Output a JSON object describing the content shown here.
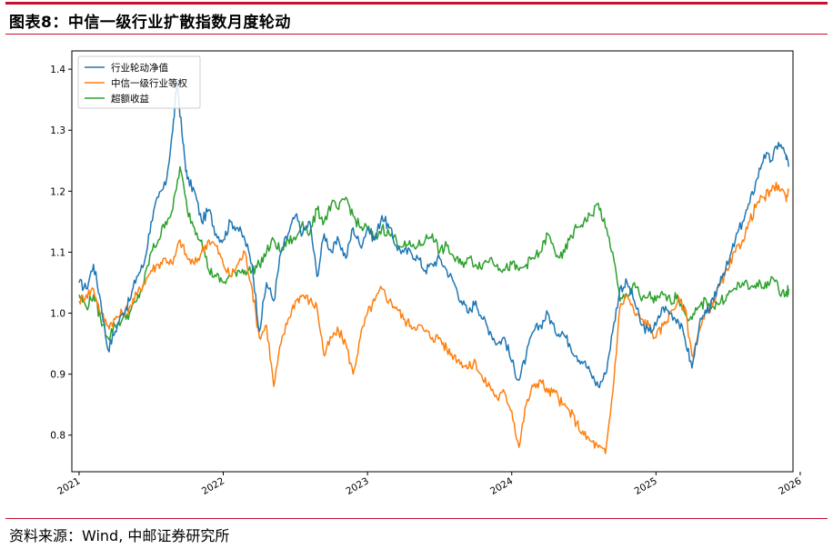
{
  "header": {
    "title": "图表8：中信一级行业扩散指数月度轮动"
  },
  "footer": {
    "source": "资料来源：Wind, 中邮证券研究所"
  },
  "chart_data": {
    "type": "line",
    "title": "图表8：中信一级行业扩散指数月度轮动",
    "xlabel": "",
    "ylabel": "",
    "ylim": [
      0.74,
      1.43
    ],
    "xlim": [
      2020.95,
      2025.95
    ],
    "yticks": [
      0.8,
      0.9,
      1.0,
      1.1,
      1.2,
      1.3,
      1.4
    ],
    "ytick_labels": [
      "0.8",
      "0.9",
      "1.0",
      "1.1",
      "1.2",
      "1.3",
      "1.4"
    ],
    "xticks": [
      2021,
      2022,
      2023,
      2024,
      2025,
      2026
    ],
    "xtick_labels": [
      "2021",
      "2022",
      "2023",
      "2024",
      "2025",
      "2026"
    ],
    "grid": false,
    "legend_position": "top-left",
    "series": [
      {
        "name": "行业轮动净值",
        "color": "#1f77b4",
        "x": [
          2021.0,
          2021.05,
          2021.1,
          2021.15,
          2021.2,
          2021.25,
          2021.3,
          2021.35,
          2021.4,
          2021.45,
          2021.5,
          2021.55,
          2021.6,
          2021.65,
          2021.68,
          2021.72,
          2021.75,
          2021.8,
          2021.85,
          2021.9,
          2021.95,
          2022.0,
          2022.05,
          2022.1,
          2022.15,
          2022.2,
          2022.25,
          2022.3,
          2022.35,
          2022.4,
          2022.45,
          2022.5,
          2022.55,
          2022.6,
          2022.65,
          2022.7,
          2022.75,
          2022.8,
          2022.85,
          2022.9,
          2022.95,
          2023.0,
          2023.05,
          2023.1,
          2023.15,
          2023.2,
          2023.25,
          2023.3,
          2023.35,
          2023.4,
          2023.45,
          2023.5,
          2023.55,
          2023.6,
          2023.65,
          2023.7,
          2023.75,
          2023.8,
          2023.85,
          2023.9,
          2023.95,
          2024.0,
          2024.05,
          2024.1,
          2024.15,
          2024.2,
          2024.25,
          2024.3,
          2024.35,
          2024.4,
          2024.45,
          2024.5,
          2024.55,
          2024.6,
          2024.65,
          2024.7,
          2024.75,
          2024.8,
          2024.85,
          2024.9,
          2024.95,
          2025.0,
          2025.05,
          2025.1,
          2025.15,
          2025.2,
          2025.25,
          2025.3,
          2025.35,
          2025.4,
          2025.45,
          2025.5,
          2025.55,
          2025.6,
          2025.65,
          2025.7,
          2025.75,
          2025.8,
          2025.85,
          2025.9,
          2025.92
        ],
        "values": [
          1.05,
          1.04,
          1.08,
          1.02,
          0.94,
          0.97,
          1.0,
          1.02,
          1.06,
          1.08,
          1.15,
          1.19,
          1.21,
          1.3,
          1.38,
          1.28,
          1.22,
          1.2,
          1.15,
          1.17,
          1.13,
          1.12,
          1.15,
          1.14,
          1.12,
          1.08,
          0.97,
          1.05,
          1.02,
          1.1,
          1.13,
          1.16,
          1.13,
          1.15,
          1.06,
          1.13,
          1.1,
          1.12,
          1.09,
          1.14,
          1.11,
          1.14,
          1.12,
          1.16,
          1.14,
          1.11,
          1.1,
          1.1,
          1.09,
          1.07,
          1.08,
          1.09,
          1.07,
          1.05,
          1.02,
          1.0,
          1.02,
          0.99,
          0.97,
          0.95,
          0.96,
          0.92,
          0.89,
          0.93,
          0.97,
          0.98,
          1.0,
          0.97,
          0.97,
          0.95,
          0.93,
          0.92,
          0.9,
          0.88,
          0.9,
          0.97,
          1.04,
          1.05,
          1.02,
          0.98,
          0.97,
          0.98,
          1.01,
          1.0,
          0.99,
          0.96,
          0.91,
          0.98,
          1.0,
          1.02,
          1.06,
          1.08,
          1.12,
          1.15,
          1.18,
          1.22,
          1.26,
          1.25,
          1.28,
          1.26,
          1.24
        ]
      },
      {
        "name": "中信一级行业等权",
        "color": "#ff7f0e",
        "x": [
          2021.0,
          2021.05,
          2021.1,
          2021.15,
          2021.2,
          2021.25,
          2021.3,
          2021.35,
          2021.4,
          2021.45,
          2021.5,
          2021.55,
          2021.6,
          2021.65,
          2021.7,
          2021.75,
          2021.8,
          2021.85,
          2021.9,
          2021.95,
          2022.0,
          2022.05,
          2022.1,
          2022.15,
          2022.2,
          2022.25,
          2022.3,
          2022.35,
          2022.4,
          2022.45,
          2022.5,
          2022.55,
          2022.6,
          2022.65,
          2022.7,
          2022.75,
          2022.8,
          2022.85,
          2022.9,
          2022.95,
          2023.0,
          2023.05,
          2023.1,
          2023.15,
          2023.2,
          2023.25,
          2023.3,
          2023.35,
          2023.4,
          2023.45,
          2023.5,
          2023.55,
          2023.6,
          2023.65,
          2023.7,
          2023.75,
          2023.8,
          2023.85,
          2023.9,
          2023.95,
          2024.0,
          2024.05,
          2024.1,
          2024.15,
          2024.2,
          2024.25,
          2024.3,
          2024.35,
          2024.4,
          2024.45,
          2024.5,
          2024.55,
          2024.6,
          2024.65,
          2024.7,
          2024.75,
          2024.8,
          2024.85,
          2024.9,
          2024.95,
          2025.0,
          2025.05,
          2025.1,
          2025.15,
          2025.2,
          2025.25,
          2025.3,
          2025.35,
          2025.4,
          2025.45,
          2025.5,
          2025.55,
          2025.6,
          2025.65,
          2025.7,
          2025.75,
          2025.8,
          2025.85,
          2025.9,
          2025.92
        ],
        "values": [
          1.02,
          1.03,
          1.04,
          1.0,
          0.98,
          0.99,
          1.0,
          1.01,
          1.03,
          1.05,
          1.07,
          1.08,
          1.09,
          1.08,
          1.12,
          1.09,
          1.08,
          1.1,
          1.12,
          1.11,
          1.08,
          1.06,
          1.08,
          1.1,
          1.04,
          0.96,
          0.98,
          0.88,
          0.95,
          0.99,
          1.02,
          1.03,
          1.02,
          1.01,
          0.93,
          0.96,
          0.97,
          0.95,
          0.9,
          0.96,
          1.0,
          1.02,
          1.04,
          1.02,
          1.01,
          0.99,
          0.98,
          0.98,
          0.97,
          0.96,
          0.96,
          0.94,
          0.93,
          0.92,
          0.91,
          0.92,
          0.89,
          0.88,
          0.86,
          0.87,
          0.84,
          0.78,
          0.85,
          0.88,
          0.89,
          0.87,
          0.87,
          0.85,
          0.84,
          0.82,
          0.8,
          0.79,
          0.78,
          0.77,
          0.87,
          1.01,
          1.03,
          1.0,
          0.99,
          0.98,
          0.96,
          0.98,
          1.0,
          1.02,
          1.01,
          0.93,
          0.97,
          1.0,
          1.02,
          1.05,
          1.07,
          1.1,
          1.12,
          1.15,
          1.18,
          1.19,
          1.2,
          1.21,
          1.19,
          1.2
        ]
      },
      {
        "name": "超额收益",
        "color": "#2ca02c",
        "x": [
          2021.0,
          2021.05,
          2021.1,
          2021.15,
          2021.2,
          2021.25,
          2021.3,
          2021.35,
          2021.4,
          2021.45,
          2021.5,
          2021.55,
          2021.6,
          2021.65,
          2021.7,
          2021.75,
          2021.8,
          2021.85,
          2021.9,
          2021.95,
          2022.0,
          2022.05,
          2022.1,
          2022.15,
          2022.2,
          2022.25,
          2022.3,
          2022.35,
          2022.4,
          2022.45,
          2022.5,
          2022.55,
          2022.6,
          2022.65,
          2022.7,
          2022.75,
          2022.8,
          2022.85,
          2022.9,
          2022.95,
          2023.0,
          2023.05,
          2023.1,
          2023.15,
          2023.2,
          2023.25,
          2023.3,
          2023.35,
          2023.4,
          2023.45,
          2023.5,
          2023.55,
          2023.6,
          2023.65,
          2023.7,
          2023.75,
          2023.8,
          2023.85,
          2023.9,
          2023.95,
          2024.0,
          2024.05,
          2024.1,
          2024.15,
          2024.2,
          2024.25,
          2024.3,
          2024.35,
          2024.4,
          2024.45,
          2024.5,
          2024.55,
          2024.6,
          2024.65,
          2024.7,
          2024.75,
          2024.8,
          2024.85,
          2024.9,
          2024.95,
          2025.0,
          2025.05,
          2025.1,
          2025.15,
          2025.2,
          2025.25,
          2025.3,
          2025.35,
          2025.4,
          2025.45,
          2025.5,
          2025.55,
          2025.6,
          2025.65,
          2025.7,
          2025.75,
          2025.8,
          2025.85,
          2025.9,
          2025.92
        ],
        "values": [
          1.03,
          1.01,
          1.03,
          0.99,
          0.96,
          0.98,
          0.99,
          1.0,
          1.02,
          1.05,
          1.1,
          1.12,
          1.15,
          1.17,
          1.24,
          1.17,
          1.14,
          1.12,
          1.07,
          1.06,
          1.05,
          1.06,
          1.07,
          1.07,
          1.07,
          1.08,
          1.1,
          1.12,
          1.1,
          1.12,
          1.12,
          1.15,
          1.13,
          1.17,
          1.15,
          1.18,
          1.17,
          1.19,
          1.16,
          1.14,
          1.14,
          1.12,
          1.14,
          1.13,
          1.12,
          1.11,
          1.11,
          1.11,
          1.12,
          1.13,
          1.1,
          1.11,
          1.09,
          1.08,
          1.09,
          1.08,
          1.08,
          1.09,
          1.08,
          1.07,
          1.08,
          1.07,
          1.08,
          1.09,
          1.1,
          1.13,
          1.1,
          1.09,
          1.12,
          1.14,
          1.15,
          1.16,
          1.18,
          1.14,
          1.1,
          1.02,
          1.03,
          1.05,
          1.02,
          1.03,
          1.02,
          1.03,
          1.02,
          1.03,
          1.0,
          0.99,
          1.01,
          1.02,
          1.01,
          1.02,
          1.03,
          1.04,
          1.05,
          1.04,
          1.05,
          1.04,
          1.06,
          1.04,
          1.03,
          1.04
        ]
      }
    ]
  }
}
